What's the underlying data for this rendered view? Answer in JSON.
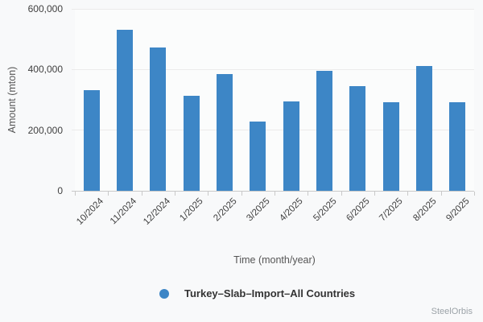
{
  "chart_data": {
    "type": "bar",
    "title": "",
    "categories": [
      "10/2024",
      "11/2024",
      "12/2024",
      "1/2025",
      "2/2025",
      "3/2025",
      "4/2025",
      "5/2025",
      "6/2025",
      "7/2025",
      "8/2025",
      "9/2025"
    ],
    "values": [
      332000,
      532000,
      473000,
      313000,
      386000,
      228000,
      295000,
      396000,
      346000,
      291000,
      411000,
      291000
    ],
    "series_name": "Turkey–Slab–Import–All Countries",
    "xlabel": "Time (month/year)",
    "ylabel": "Amount (mton)",
    "ylim": [
      0,
      600000
    ],
    "yticks": [
      0,
      200000,
      400000,
      600000
    ],
    "ytick_labels": [
      "0",
      "200,000",
      "400,000",
      "600,000"
    ],
    "grid": true,
    "legend_position": "bottom",
    "bar_color": "#3d86c6"
  },
  "legend": {
    "label": "Turkey–Slab–Import–All Countries",
    "marker_color": "#3d86c6"
  },
  "watermark": "SteelOrbis",
  "colors": {
    "background": "#f8f9fa",
    "accent": "#3d86c6",
    "gridline": "#ebebeb",
    "axis": "#c9c9c9"
  }
}
